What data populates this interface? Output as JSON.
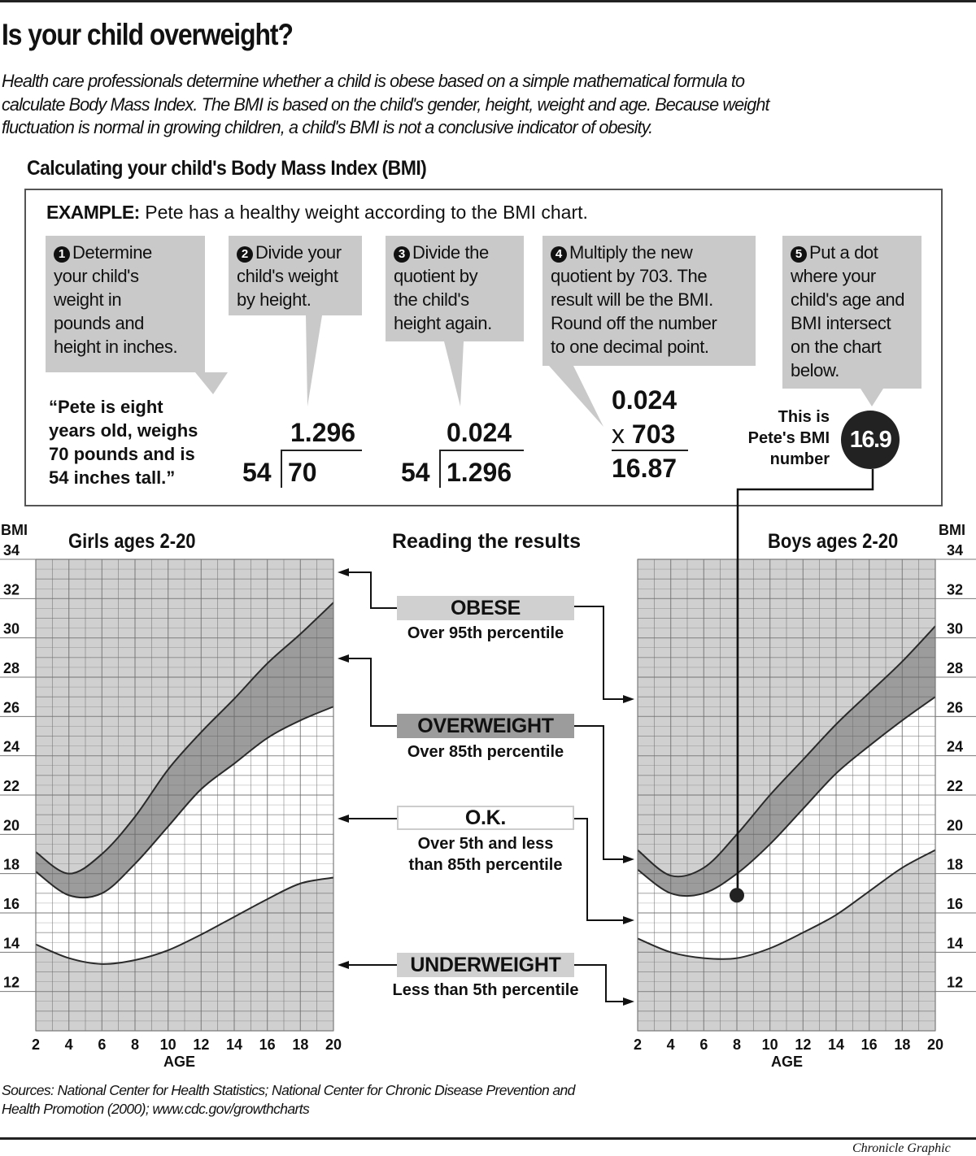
{
  "header": {
    "title": "Is your child overweight?",
    "intro_lines": [
      "Health care professionals determine whether a child is obese based on a simple mathematical formula to",
      "calculate Body Mass Index. The BMI is based on the child's gender, height, weight and age. Because weight",
      "fluctuation is normal in growing children, a child's BMI is not a conclusive indicator of obesity."
    ],
    "subtitle": "Calculating your child's Body Mass Index (BMI)"
  },
  "example": {
    "label": "EXAMPLE:",
    "text": "Pete has a healthy weight according to the BMI chart.",
    "steps": [
      {
        "number": "1",
        "lines": [
          "Determine",
          "your child's",
          "weight in",
          "pounds and",
          "height in inches."
        ]
      },
      {
        "number": "2",
        "lines": [
          "Divide your",
          "child's weight",
          "by height."
        ]
      },
      {
        "number": "3",
        "lines": [
          "Divide the",
          "quotient by",
          "the child's",
          "height again."
        ]
      },
      {
        "number": "4",
        "lines": [
          "Multiply the new",
          "quotient by 703. The",
          "result will be the BMI.",
          "Round off the number",
          "to one decimal point."
        ]
      },
      {
        "number": "5",
        "lines": [
          "Put a dot",
          "where your",
          "child's age and",
          "BMI intersect",
          "on the chart",
          "below."
        ]
      }
    ],
    "quote_lines": [
      "“Pete is eight",
      "years old, weighs",
      "70 pounds and is",
      "54 inches tall.”"
    ],
    "division1": {
      "quotient": "1.296",
      "divisor": "54",
      "dividend": "70"
    },
    "division2": {
      "quotient": "0.024",
      "divisor": "54",
      "dividend": "1.296"
    },
    "multiply": {
      "value": "0.024",
      "operator": "x",
      "factor": "703",
      "result": "16.87"
    },
    "pete_label_lines": [
      "This is",
      "Pete's BMI",
      "number"
    ],
    "pete_bmi": "16.9"
  },
  "legend": {
    "title": "Reading the results",
    "items": [
      {
        "label": "OBESE",
        "desc": [
          "Over 95th percentile"
        ],
        "fill": "#d0d0d0"
      },
      {
        "label": "OVERWEIGHT",
        "desc": [
          "Over 85th percentile"
        ],
        "fill": "#9c9c9c"
      },
      {
        "label": "O.K.",
        "desc": [
          "Over 5th and less",
          "than 85th percentile"
        ],
        "fill": "#ffffff"
      },
      {
        "label": "UNDERWEIGHT",
        "desc": [
          "Less than 5th percentile"
        ],
        "fill": "#d0d0d0"
      }
    ]
  },
  "chart_data": [
    {
      "type": "line",
      "title": "Girls ages 2-20",
      "xlabel": "AGE",
      "ylabel": "BMI",
      "xlim": [
        2,
        20
      ],
      "ylim": [
        10,
        34
      ],
      "x_ticks": [
        "2",
        "4",
        "6",
        "8",
        "10",
        "12",
        "14",
        "16",
        "18",
        "20"
      ],
      "y_ticks": [
        "12",
        "14",
        "16",
        "18",
        "20",
        "22",
        "24",
        "26",
        "28",
        "30",
        "32",
        "34"
      ],
      "y_axis_side": "left",
      "grid": true,
      "x": [
        2,
        4,
        6,
        8,
        10,
        12,
        14,
        16,
        18,
        20
      ],
      "series": [
        {
          "values": [
            19.1,
            18.0,
            19.0,
            20.9,
            23.3,
            25.2,
            26.9,
            28.7,
            30.2,
            31.8
          ]
        },
        {
          "values": [
            18.1,
            16.9,
            17.0,
            18.5,
            20.4,
            22.3,
            23.6,
            24.9,
            25.8,
            26.5
          ]
        },
        {
          "values": [
            14.4,
            13.7,
            13.4,
            13.6,
            14.1,
            14.9,
            15.8,
            16.7,
            17.5,
            17.8
          ]
        }
      ],
      "zone_colors": {
        "obese": "#d0d0d0",
        "overweight": "#9c9c9c",
        "ok": "#ffffff",
        "underweight": "#d0d0d0"
      }
    },
    {
      "type": "line",
      "title": "Boys ages 2-20",
      "xlabel": "AGE",
      "ylabel": "BMI",
      "xlim": [
        2,
        20
      ],
      "ylim": [
        10,
        34
      ],
      "x_ticks": [
        "2",
        "4",
        "6",
        "8",
        "10",
        "12",
        "14",
        "16",
        "18",
        "20"
      ],
      "y_ticks": [
        "12",
        "14",
        "16",
        "18",
        "20",
        "22",
        "24",
        "26",
        "28",
        "30",
        "32",
        "34"
      ],
      "y_axis_side": "right",
      "grid": true,
      "x": [
        2,
        4,
        6,
        8,
        10,
        12,
        14,
        16,
        18,
        20
      ],
      "series": [
        {
          "values": [
            19.2,
            17.9,
            18.3,
            20.0,
            22.0,
            23.8,
            25.6,
            27.2,
            28.8,
            30.6
          ]
        },
        {
          "values": [
            18.2,
            17.0,
            17.0,
            18.0,
            19.5,
            21.3,
            23.1,
            24.5,
            25.8,
            27.0
          ]
        },
        {
          "values": [
            14.7,
            14.0,
            13.7,
            13.7,
            14.2,
            15.0,
            15.9,
            17.1,
            18.3,
            19.2
          ]
        }
      ],
      "points": [
        {
          "x": 8,
          "y": 16.9
        }
      ],
      "zone_colors": {
        "obese": "#d0d0d0",
        "overweight": "#9c9c9c",
        "ok": "#ffffff",
        "underweight": "#d0d0d0"
      }
    }
  ],
  "footer": {
    "sources_lines": [
      "Sources: National Center for Health Statistics; National Center for Chronic Disease Prevention and",
      "Health Promotion (2000); www.cdc.gov/growthcharts"
    ],
    "credit": "Chronicle Graphic"
  }
}
